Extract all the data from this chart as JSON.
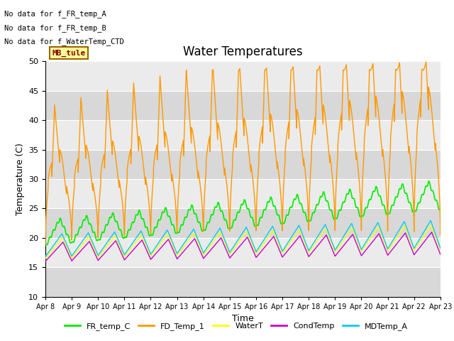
{
  "title": "Water Temperatures",
  "xlabel": "Time",
  "ylabel": "Temperature (C)",
  "ylim": [
    10,
    50
  ],
  "xlim": [
    0,
    15
  ],
  "x_tick_labels": [
    "Apr 8",
    "Apr 9",
    "Apr 10",
    "Apr 11",
    "Apr 12",
    "Apr 13",
    "Apr 14",
    "Apr 15",
    "Apr 16",
    "Apr 17",
    "Apr 18",
    "Apr 19",
    "Apr 20",
    "Apr 21",
    "Apr 22",
    "Apr 23"
  ],
  "annotations": [
    "No data for f_FR_temp_A",
    "No data for f_FR_temp_B",
    "No data for f_WaterTemp_CTD"
  ],
  "mb_tule_label": "MB_tule",
  "series_colors": {
    "FR_temp_C": "#00ee00",
    "FD_Temp_1": "#ff9900",
    "WaterT": "#ffff00",
    "CondTemp": "#cc00cc",
    "MDTemp_A": "#00ccff"
  },
  "bg_color": "#ebebeb",
  "band_color": "#d8d8d8",
  "fig_bg": "#ffffff",
  "grid_color": "#ffffff",
  "title_fontsize": 12,
  "axis_fontsize": 9,
  "legend_fontsize": 8
}
